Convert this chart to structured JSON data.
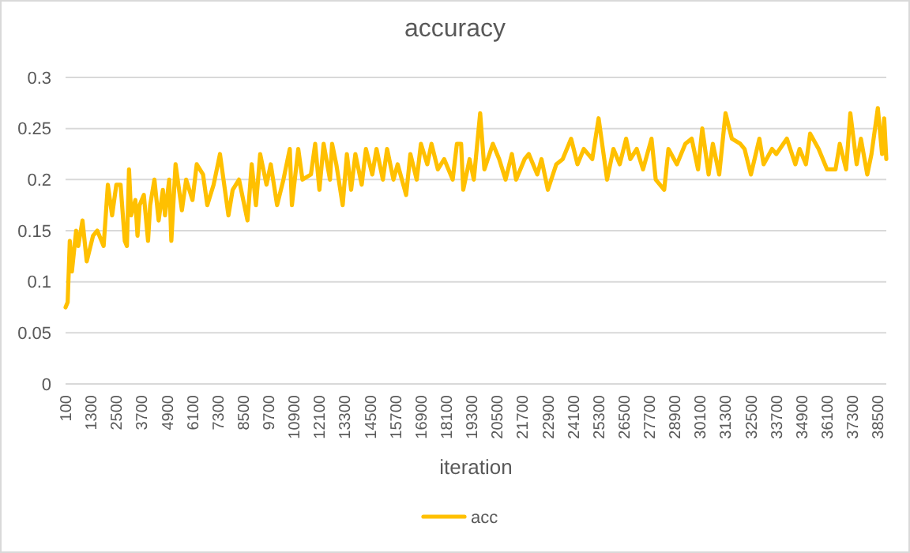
{
  "chart_data": {
    "type": "line",
    "title": "accuracy",
    "xlabel": "iteration",
    "x": [
      100,
      200,
      300,
      400,
      600,
      700,
      900,
      1100,
      1400,
      1600,
      1900,
      2100,
      2300,
      2500,
      2700,
      2900,
      3000,
      3100,
      3200,
      3400,
      3500,
      3600,
      3800,
      4000,
      4100,
      4300,
      4500,
      4700,
      4800,
      5000,
      5100,
      5300,
      5600,
      5800,
      6100,
      6300,
      6600,
      6800,
      7100,
      7400,
      7800,
      8000,
      8300,
      8700,
      8900,
      9100,
      9300,
      9600,
      9800,
      10100,
      10400,
      10700,
      10800,
      11100,
      11300,
      11700,
      11900,
      12100,
      12300,
      12600,
      12700,
      12900,
      13200,
      13400,
      13600,
      13800,
      14100,
      14300,
      14600,
      14800,
      15100,
      15300,
      15600,
      15800,
      16200,
      16400,
      16700,
      16900,
      17200,
      17400,
      17700,
      18000,
      18400,
      18600,
      18800,
      18900,
      19200,
      19400,
      19700,
      19900,
      20300,
      20600,
      20900,
      21200,
      21400,
      21800,
      22000,
      22400,
      22600,
      22900,
      23300,
      23600,
      24000,
      24300,
      24600,
      25000,
      25300,
      25700,
      26000,
      26300,
      26600,
      26800,
      27100,
      27400,
      27800,
      28000,
      28400,
      28600,
      29000,
      29400,
      29700,
      30000,
      30200,
      30500,
      30700,
      31000,
      31300,
      31600,
      32000,
      32200,
      32500,
      32900,
      33100,
      33500,
      33700,
      34200,
      34600,
      34800,
      35100,
      35300,
      35700,
      36100,
      36500,
      36700,
      37000,
      37200,
      37500,
      37700,
      38000,
      38200,
      38500,
      38700,
      38800,
      38900
    ],
    "series": [
      {
        "name": "acc",
        "color": "#ffc000",
        "values": [
          0.075,
          0.08,
          0.14,
          0.11,
          0.15,
          0.135,
          0.16,
          0.12,
          0.145,
          0.15,
          0.135,
          0.195,
          0.165,
          0.195,
          0.195,
          0.14,
          0.135,
          0.21,
          0.165,
          0.18,
          0.145,
          0.175,
          0.185,
          0.14,
          0.175,
          0.2,
          0.16,
          0.19,
          0.165,
          0.2,
          0.14,
          0.215,
          0.17,
          0.2,
          0.18,
          0.215,
          0.205,
          0.175,
          0.195,
          0.225,
          0.165,
          0.19,
          0.2,
          0.16,
          0.215,
          0.175,
          0.225,
          0.195,
          0.215,
          0.175,
          0.2,
          0.23,
          0.175,
          0.23,
          0.2,
          0.205,
          0.235,
          0.19,
          0.235,
          0.2,
          0.235,
          0.215,
          0.175,
          0.225,
          0.19,
          0.225,
          0.195,
          0.23,
          0.205,
          0.23,
          0.2,
          0.23,
          0.2,
          0.215,
          0.185,
          0.225,
          0.2,
          0.235,
          0.215,
          0.235,
          0.21,
          0.22,
          0.2,
          0.235,
          0.235,
          0.19,
          0.22,
          0.2,
          0.265,
          0.21,
          0.235,
          0.22,
          0.2,
          0.225,
          0.2,
          0.22,
          0.225,
          0.205,
          0.22,
          0.19,
          0.215,
          0.22,
          0.24,
          0.215,
          0.23,
          0.22,
          0.26,
          0.2,
          0.23,
          0.215,
          0.24,
          0.22,
          0.23,
          0.21,
          0.24,
          0.2,
          0.19,
          0.23,
          0.215,
          0.235,
          0.24,
          0.21,
          0.25,
          0.205,
          0.235,
          0.205,
          0.265,
          0.24,
          0.235,
          0.23,
          0.205,
          0.24,
          0.215,
          0.23,
          0.225,
          0.24,
          0.215,
          0.23,
          0.215,
          0.245,
          0.23,
          0.21,
          0.21,
          0.235,
          0.21,
          0.265,
          0.215,
          0.24,
          0.205,
          0.225,
          0.27,
          0.225,
          0.26,
          0.22
        ]
      }
    ],
    "xlim": [
      100,
      38900
    ],
    "xticks": [
      100,
      1300,
      2500,
      3700,
      4900,
      6100,
      7300,
      8500,
      9700,
      10900,
      12100,
      13300,
      14500,
      15700,
      16900,
      18100,
      19300,
      20500,
      21700,
      22900,
      24100,
      25300,
      26500,
      27700,
      28900,
      30100,
      31300,
      32500,
      33700,
      34900,
      36100,
      37300,
      38500
    ],
    "ylim": [
      0,
      0.3
    ],
    "yticks": [
      0,
      0.05,
      0.1,
      0.15,
      0.2,
      0.25,
      0.3
    ],
    "grid": "y",
    "legend": "bottom",
    "marker": "none",
    "line_style": "solid"
  }
}
